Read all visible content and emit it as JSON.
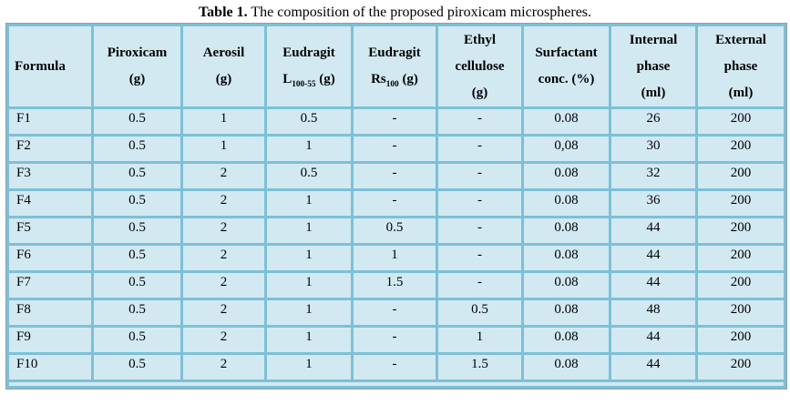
{
  "title": {
    "bold": "Table 1.",
    "rest": " The composition of the proposed piroxicam microspheres."
  },
  "colors": {
    "cell_bg": "#d2e9f2",
    "grid_border": "#7cc0d8",
    "outer_edge": "#9c9c9c",
    "page_bg": "#ffffff",
    "text": "#000000"
  },
  "table": {
    "headers": [
      {
        "line1": "Formula"
      },
      {
        "line1": "Piroxicam",
        "line2": "(g)"
      },
      {
        "line1": "Aerosil",
        "line2": "(g)"
      },
      {
        "line1": "Eudragit",
        "line2_pre": "L",
        "line2_sub": "100-55",
        "line2_post": " (g)"
      },
      {
        "line1": "Eudragit",
        "line2_pre": "Rs",
        "line2_sub": "100",
        "line2_post": " (g)"
      },
      {
        "line1": "Ethyl",
        "line2": "cellulose",
        "line3": "(g)"
      },
      {
        "line1": "Surfactant",
        "line2": "conc. (%)"
      },
      {
        "line1": "Internal",
        "line2": "phase",
        "line3": "(ml)"
      },
      {
        "line1": "External",
        "line2": "phase",
        "line3": "(ml)"
      }
    ],
    "rows": [
      [
        "F1",
        "0.5",
        "1",
        "0.5",
        "-",
        "-",
        "0.08",
        "26",
        "200"
      ],
      [
        "F2",
        "0.5",
        "1",
        "1",
        "-",
        "-",
        "0,08",
        "30",
        "200"
      ],
      [
        "F3",
        "0.5",
        "2",
        "0.5",
        "-",
        "-",
        "0.08",
        "32",
        "200"
      ],
      [
        "F4",
        "0.5",
        "2",
        "1",
        "-",
        "-",
        "0.08",
        "36",
        "200"
      ],
      [
        "F5",
        "0.5",
        "2",
        "1",
        "0.5",
        "-",
        "0.08",
        "44",
        "200"
      ],
      [
        "F6",
        "0.5",
        "2",
        "1",
        "1",
        "-",
        "0.08",
        "44",
        "200"
      ],
      [
        "F7",
        "0.5",
        "2",
        "1",
        "1.5",
        "-",
        "0.08",
        "44",
        "200"
      ],
      [
        "F8",
        "0.5",
        "2",
        "1",
        "-",
        "0.5",
        "0.08",
        "48",
        "200"
      ],
      [
        "F9",
        "0.5",
        "2",
        "1",
        "-",
        "1",
        "0.08",
        "44",
        "200"
      ],
      [
        "F10",
        "0.5",
        "2",
        "1",
        "-",
        "1.5",
        "0.08",
        "44",
        "200"
      ]
    ]
  }
}
